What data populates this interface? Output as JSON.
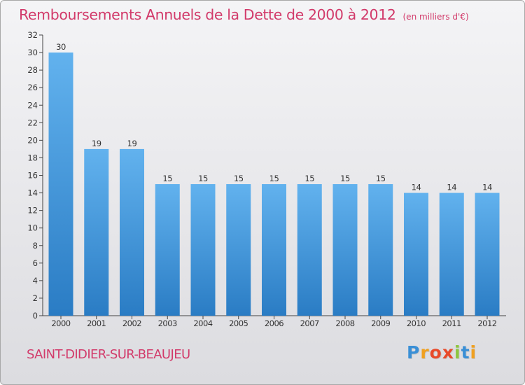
{
  "chart_data": {
    "type": "bar",
    "title": "Remboursements Annuels de la Dette de 2000 à 2012",
    "subtitle": "(en milliers d'€)",
    "categories": [
      "2000",
      "2001",
      "2002",
      "2003",
      "2004",
      "2005",
      "2006",
      "2007",
      "2008",
      "2009",
      "2010",
      "2011",
      "2012"
    ],
    "values": [
      30,
      19,
      19,
      15,
      15,
      15,
      15,
      15,
      15,
      15,
      14,
      14,
      14
    ],
    "ylim": [
      0,
      32
    ],
    "yticks": [
      0,
      2,
      4,
      6,
      8,
      10,
      12,
      14,
      16,
      18,
      20,
      22,
      24,
      26,
      28,
      30,
      32
    ],
    "grid": false,
    "bar_color": "#4a9fe0"
  },
  "footer": {
    "commune": "SAINT-DIDIER-SUR-BEAUJEU",
    "logo": [
      "P",
      "r",
      "o",
      "x",
      "i",
      "t",
      "i"
    ]
  }
}
